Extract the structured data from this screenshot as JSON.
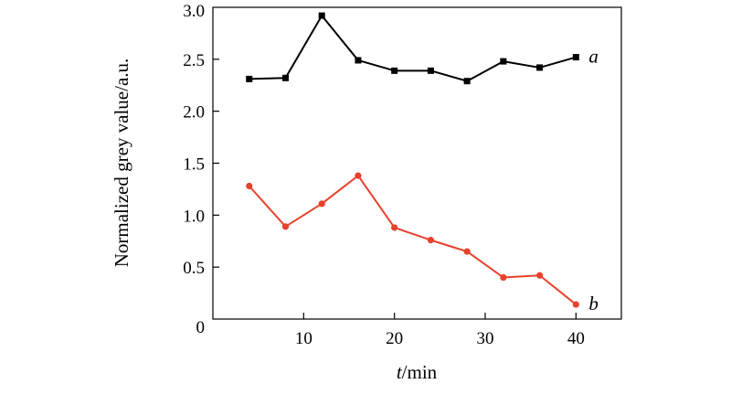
{
  "chart_data": {
    "type": "line",
    "xlabel": {
      "italic": "t",
      "rest": "/min"
    },
    "ylabel": "Normalized grey value/a.u.",
    "xlim": [
      0,
      45
    ],
    "ylim": [
      0,
      3.0
    ],
    "xticks": [
      10,
      20,
      30,
      40
    ],
    "xtick_labels": [
      "10",
      "20",
      "30",
      "40"
    ],
    "yticks": [
      0,
      0.5,
      1.0,
      1.5,
      2.0,
      2.5,
      3.0
    ],
    "ytick_labels": [
      "0",
      "0.5",
      "1.0",
      "1.5",
      "2.0",
      "2.5",
      "3.0"
    ],
    "grid": false,
    "series": [
      {
        "name": "a",
        "color": "#000000",
        "marker": "square",
        "x": [
          4,
          8,
          12,
          16,
          20,
          24,
          28,
          32,
          36,
          40
        ],
        "y": [
          2.31,
          2.32,
          2.92,
          2.49,
          2.39,
          2.39,
          2.29,
          2.48,
          2.42,
          2.52
        ]
      },
      {
        "name": "b",
        "color": "#e8412c",
        "marker": "circle",
        "x": [
          4,
          8,
          12,
          16,
          20,
          24,
          28,
          32,
          36,
          40
        ],
        "y": [
          1.28,
          0.89,
          1.11,
          1.38,
          0.88,
          0.76,
          0.65,
          0.4,
          0.42,
          0.14
        ]
      }
    ]
  }
}
